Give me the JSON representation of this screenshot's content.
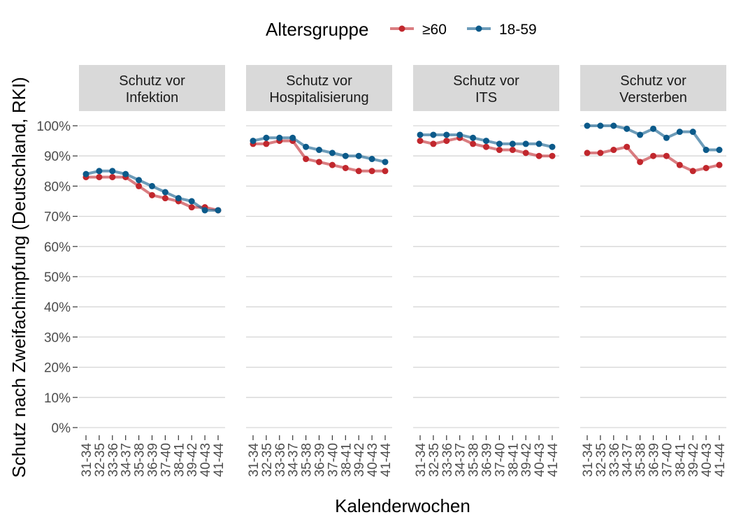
{
  "legend": {
    "title": "Altersgruppe"
  },
  "chart_data": {
    "type": "line",
    "xlabel": "Kalenderwochen",
    "ylabel": "Schutz nach Zweifachimpfung (Deutschland, RKI)",
    "ylim": [
      0,
      100
    ],
    "ytick_labels": [
      "0%",
      "10%",
      "20%",
      "30%",
      "40%",
      "50%",
      "60%",
      "70%",
      "80%",
      "90%",
      "100%"
    ],
    "grid": true,
    "legend_position": "top",
    "categories": [
      "31-34",
      "32-35",
      "33-36",
      "34-37",
      "35-38",
      "36-39",
      "37-40",
      "38-41",
      "39-42",
      "40-43",
      "41-44"
    ],
    "series_style": [
      {
        "name": "≥60",
        "color": "#c1272d"
      },
      {
        "name": "18-59",
        "color": "#0b5a8a"
      }
    ],
    "panels": [
      {
        "title_line1": "Schutz vor",
        "title_line2": "Infektion",
        "series": [
          {
            "name": "≥60",
            "values": [
              83,
              83,
              83,
              83,
              80,
              77,
              76,
              75,
              73,
              73,
              72
            ]
          },
          {
            "name": "18-59",
            "values": [
              84,
              85,
              85,
              84,
              82,
              80,
              78,
              76,
              75,
              72,
              72
            ]
          }
        ]
      },
      {
        "title_line1": "Schutz vor",
        "title_line2": "Hospitalisierung",
        "series": [
          {
            "name": "≥60",
            "values": [
              94,
              94,
              95,
              95,
              89,
              88,
              87,
              86,
              85,
              85,
              85
            ]
          },
          {
            "name": "18-59",
            "values": [
              95,
              96,
              96,
              96,
              93,
              92,
              91,
              90,
              90,
              89,
              88
            ]
          }
        ]
      },
      {
        "title_line1": "Schutz vor",
        "title_line2": "ITS",
        "series": [
          {
            "name": "≥60",
            "values": [
              95,
              94,
              95,
              96,
              94,
              93,
              92,
              92,
              91,
              90,
              90
            ]
          },
          {
            "name": "18-59",
            "values": [
              97,
              97,
              97,
              97,
              96,
              95,
              94,
              94,
              94,
              94,
              93
            ]
          }
        ]
      },
      {
        "title_line1": "Schutz vor",
        "title_line2": "Versterben",
        "series": [
          {
            "name": "≥60",
            "values": [
              91,
              91,
              92,
              93,
              88,
              90,
              90,
              87,
              85,
              86,
              87
            ]
          },
          {
            "name": "18-59",
            "values": [
              100,
              100,
              100,
              99,
              97,
              99,
              96,
              98,
              98,
              92,
              92
            ]
          }
        ]
      }
    ]
  }
}
